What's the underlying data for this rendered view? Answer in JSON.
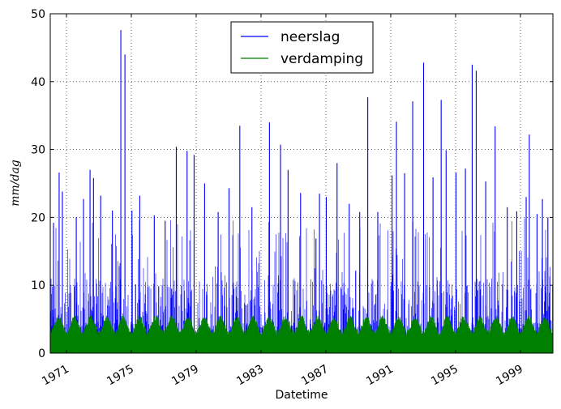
{
  "chart_data": {
    "type": "line",
    "xlabel": "Datetime",
    "ylabel": "mm/dag",
    "x_axis": {
      "start": "1970-01-01",
      "end": "2001-01-01",
      "scale": "date"
    },
    "ylim": [
      0,
      50
    ],
    "yticks": [
      0,
      10,
      20,
      30,
      40,
      50
    ],
    "xticks": [
      "1971",
      "1975",
      "1979",
      "1983",
      "1987",
      "1991",
      "1995",
      "1999"
    ],
    "grid": true,
    "legend_position": "top-center",
    "series": [
      {
        "name": "neerslag",
        "color": "#0000ff",
        "typical_range": [
          0,
          10
        ],
        "peaks": [
          {
            "date": "1970-03-15",
            "value": 19.2
          },
          {
            "date": "1970-07-20",
            "value": 26.6
          },
          {
            "date": "1970-10-01",
            "value": 23.8
          },
          {
            "date": "1971-08-10",
            "value": 20.0
          },
          {
            "date": "1972-01-20",
            "value": 22.7
          },
          {
            "date": "1972-06-15",
            "value": 27.0
          },
          {
            "date": "1972-09-01",
            "value": 25.8
          },
          {
            "date": "1973-02-10",
            "value": 23.2
          },
          {
            "date": "1973-11-01",
            "value": 21.0
          },
          {
            "date": "1974-05-10",
            "value": 47.6
          },
          {
            "date": "1974-08-10",
            "value": 44.0
          },
          {
            "date": "1975-01-15",
            "value": 21.0
          },
          {
            "date": "1975-07-10",
            "value": 23.2
          },
          {
            "date": "1976-06-01",
            "value": 20.3
          },
          {
            "date": "1977-02-01",
            "value": 19.5
          },
          {
            "date": "1977-10-10",
            "value": 30.4
          },
          {
            "date": "1978-06-10",
            "value": 29.8
          },
          {
            "date": "1978-11-15",
            "value": 29.2
          },
          {
            "date": "1979-07-10",
            "value": 25.0
          },
          {
            "date": "1980-05-10",
            "value": 20.8
          },
          {
            "date": "1981-01-10",
            "value": 24.3
          },
          {
            "date": "1981-09-10",
            "value": 33.5
          },
          {
            "date": "1982-06-10",
            "value": 21.5
          },
          {
            "date": "1983-07-10",
            "value": 34.0
          },
          {
            "date": "1984-03-15",
            "value": 30.7
          },
          {
            "date": "1984-09-01",
            "value": 27.0
          },
          {
            "date": "1985-06-10",
            "value": 23.6
          },
          {
            "date": "1986-08-10",
            "value": 23.5
          },
          {
            "date": "1987-01-10",
            "value": 23.0
          },
          {
            "date": "1987-09-10",
            "value": 28.0
          },
          {
            "date": "1988-06-10",
            "value": 22.0
          },
          {
            "date": "1989-02-01",
            "value": 20.8
          },
          {
            "date": "1989-08-01",
            "value": 37.7
          },
          {
            "date": "1990-03-15",
            "value": 20.8
          },
          {
            "date": "1991-02-01",
            "value": 26.2
          },
          {
            "date": "1991-05-10",
            "value": 34.1
          },
          {
            "date": "1991-11-10",
            "value": 26.5
          },
          {
            "date": "1992-05-10",
            "value": 37.1
          },
          {
            "date": "1993-01-10",
            "value": 42.8
          },
          {
            "date": "1993-08-10",
            "value": 25.9
          },
          {
            "date": "1994-02-10",
            "value": 37.3
          },
          {
            "date": "1994-06-01",
            "value": 29.9
          },
          {
            "date": "1995-01-10",
            "value": 26.6
          },
          {
            "date": "1995-08-10",
            "value": 27.2
          },
          {
            "date": "1996-01-10",
            "value": 42.5
          },
          {
            "date": "1996-04-10",
            "value": 41.6
          },
          {
            "date": "1996-11-10",
            "value": 25.3
          },
          {
            "date": "1997-06-10",
            "value": 33.4
          },
          {
            "date": "1998-03-10",
            "value": 21.5
          },
          {
            "date": "1998-10-10",
            "value": 20.9
          },
          {
            "date": "1999-05-10",
            "value": 23.0
          },
          {
            "date": "1999-07-20",
            "value": 32.2
          },
          {
            "date": "2000-01-10",
            "value": 20.5
          },
          {
            "date": "2000-05-10",
            "value": 22.7
          },
          {
            "date": "2000-09-10",
            "value": 20.0
          }
        ]
      },
      {
        "name": "verdamping",
        "color": "#008000",
        "seasonal_range": [
          0,
          5.5
        ],
        "typical_summer_peak": 4.5
      }
    ]
  }
}
